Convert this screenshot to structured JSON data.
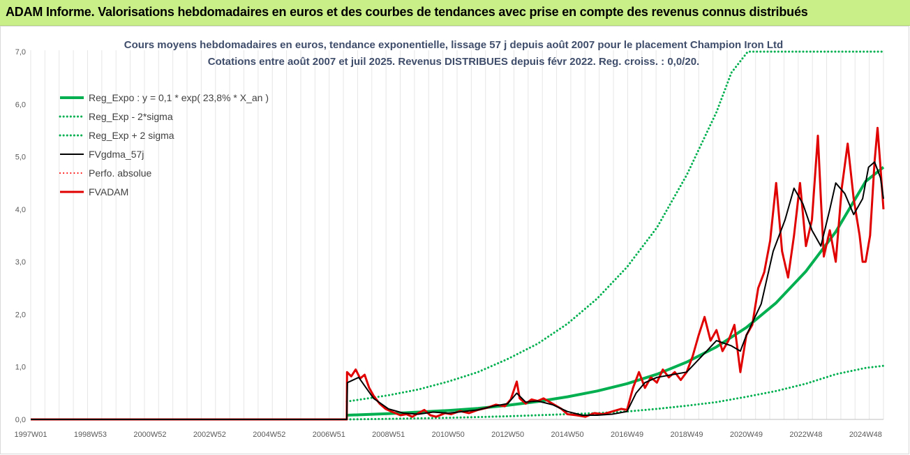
{
  "header": {
    "title": "ADAM Informe. Valorisations hebdomadaires en euros et des courbes de tendances avec prise en compte des revenus connus distribués"
  },
  "chart_data": {
    "type": "line",
    "title": "Cours moyens hebdomadaires en euros, tendance exponentielle, lissage 57 j depuis août 2007 pour le placement Champion Iron Ltd",
    "subtitle": "Cotations entre août 2007 et juil 2025. Revenus DISTRIBUES depuis févr 2022. Reg. croiss. : 0,0/20.",
    "x_range": [
      1997.0,
      2025.6
    ],
    "ylim": [
      0,
      7
    ],
    "grid": "vertical",
    "legend_position": "top-left",
    "y_ticks": [
      "0,0",
      "1,0",
      "2,0",
      "3,0",
      "4,0",
      "5,0",
      "6,0",
      "7,0"
    ],
    "x_ticks": [
      {
        "label": "1997W01",
        "x": 1997.0
      },
      {
        "label": "1998W53",
        "x": 1999.0
      },
      {
        "label": "2000W52",
        "x": 2001.0
      },
      {
        "label": "2002W52",
        "x": 2003.0
      },
      {
        "label": "2004W52",
        "x": 2005.0
      },
      {
        "label": "2006W51",
        "x": 2007.0
      },
      {
        "label": "2008W51",
        "x": 2009.0
      },
      {
        "label": "2010W50",
        "x": 2011.0
      },
      {
        "label": "2012W50",
        "x": 2013.0
      },
      {
        "label": "2014W50",
        "x": 2015.0
      },
      {
        "label": "2016W49",
        "x": 2017.0
      },
      {
        "label": "2018W49",
        "x": 2019.0
      },
      {
        "label": "2020W49",
        "x": 2021.0
      },
      {
        "label": "2022W48",
        "x": 2023.0
      },
      {
        "label": "2024W48",
        "x": 2025.0
      }
    ],
    "series": [
      {
        "name": "Reg_Expo : y = 0,1 * exp( 23,8% *  X_an )",
        "color": "#00b050",
        "style": "solid",
        "width": 4,
        "points": [
          [
            2007.6,
            0.08
          ],
          [
            2009,
            0.11
          ],
          [
            2010,
            0.14
          ],
          [
            2011,
            0.17
          ],
          [
            2012,
            0.21
          ],
          [
            2013,
            0.27
          ],
          [
            2014,
            0.34
          ],
          [
            2015,
            0.43
          ],
          [
            2016,
            0.54
          ],
          [
            2017,
            0.68
          ],
          [
            2018,
            0.86
          ],
          [
            2019,
            1.09
          ],
          [
            2020,
            1.38
          ],
          [
            2021,
            1.75
          ],
          [
            2022,
            2.22
          ],
          [
            2023,
            2.82
          ],
          [
            2024,
            3.57
          ],
          [
            2025,
            4.53
          ],
          [
            2025.6,
            4.8
          ]
        ]
      },
      {
        "name": "Reg_Exp - 2*sigma",
        "color": "#00b050",
        "style": "dotted",
        "width": 3,
        "points": [
          [
            2007.6,
            0.0
          ],
          [
            2009,
            0.01
          ],
          [
            2010,
            0.02
          ],
          [
            2011,
            0.03
          ],
          [
            2012,
            0.045
          ],
          [
            2013,
            0.06
          ],
          [
            2014,
            0.08
          ],
          [
            2015,
            0.1
          ],
          [
            2016,
            0.12
          ],
          [
            2017,
            0.15
          ],
          [
            2018,
            0.2
          ],
          [
            2019,
            0.26
          ],
          [
            2020,
            0.33
          ],
          [
            2021,
            0.43
          ],
          [
            2022,
            0.54
          ],
          [
            2023,
            0.68
          ],
          [
            2024,
            0.86
          ],
          [
            2025,
            0.98
          ],
          [
            2025.6,
            1.02
          ]
        ]
      },
      {
        "name": "Reg_Exp + 2 sigma",
        "color": "#00b050",
        "style": "dotted",
        "width": 3,
        "points": [
          [
            2007.6,
            0.34
          ],
          [
            2009,
            0.46
          ],
          [
            2010,
            0.57
          ],
          [
            2011,
            0.72
          ],
          [
            2012,
            0.9
          ],
          [
            2013,
            1.15
          ],
          [
            2014,
            1.44
          ],
          [
            2015,
            1.82
          ],
          [
            2016,
            2.3
          ],
          [
            2017,
            2.9
          ],
          [
            2018,
            3.65
          ],
          [
            2019,
            4.65
          ],
          [
            2020,
            5.85
          ],
          [
            2020.5,
            6.6
          ],
          [
            2021.05,
            7.0
          ],
          [
            2025.6,
            7.0
          ]
        ]
      },
      {
        "name": "FVgdma_57j",
        "color": "#000000",
        "style": "solid",
        "width": 2,
        "points": [
          [
            1997.0,
            0.0
          ],
          [
            2007.6,
            0.0
          ],
          [
            2007.62,
            0.7
          ],
          [
            2008,
            0.8
          ],
          [
            2008.5,
            0.4
          ],
          [
            2009,
            0.2
          ],
          [
            2009.5,
            0.12
          ],
          [
            2010,
            0.1
          ],
          [
            2010.5,
            0.14
          ],
          [
            2011,
            0.12
          ],
          [
            2011.5,
            0.15
          ],
          [
            2012,
            0.18
          ],
          [
            2012.5,
            0.25
          ],
          [
            2013,
            0.3
          ],
          [
            2013.3,
            0.5
          ],
          [
            2013.6,
            0.33
          ],
          [
            2014,
            0.35
          ],
          [
            2014.5,
            0.28
          ],
          [
            2015,
            0.15
          ],
          [
            2015.5,
            0.08
          ],
          [
            2016,
            0.08
          ],
          [
            2016.5,
            0.1
          ],
          [
            2017,
            0.15
          ],
          [
            2017.3,
            0.5
          ],
          [
            2017.6,
            0.7
          ],
          [
            2018,
            0.8
          ],
          [
            2018.5,
            0.85
          ],
          [
            2019,
            0.9
          ],
          [
            2019.5,
            1.2
          ],
          [
            2020,
            1.5
          ],
          [
            2020.5,
            1.4
          ],
          [
            2020.8,
            1.3
          ],
          [
            2021,
            1.6
          ],
          [
            2021.5,
            2.2
          ],
          [
            2021.9,
            3.2
          ],
          [
            2022.3,
            3.8
          ],
          [
            2022.6,
            4.4
          ],
          [
            2022.9,
            4.1
          ],
          [
            2023.2,
            3.6
          ],
          [
            2023.5,
            3.3
          ],
          [
            2023.8,
            4.0
          ],
          [
            2024.0,
            4.5
          ],
          [
            2024.3,
            4.3
          ],
          [
            2024.6,
            3.9
          ],
          [
            2024.9,
            4.2
          ],
          [
            2025.1,
            4.8
          ],
          [
            2025.3,
            4.9
          ],
          [
            2025.5,
            4.6
          ],
          [
            2025.6,
            4.2
          ]
        ]
      },
      {
        "name": "Perfo. absolue",
        "color": "#ff0000",
        "style": "dotted",
        "width": 2,
        "points": []
      },
      {
        "name": "FVADAM",
        "color": "#e00000",
        "style": "solid",
        "width": 3,
        "points": [
          [
            1997.0,
            0.0
          ],
          [
            2007.6,
            0.0
          ],
          [
            2007.61,
            0.9
          ],
          [
            2007.75,
            0.82
          ],
          [
            2007.9,
            0.95
          ],
          [
            2008.05,
            0.78
          ],
          [
            2008.2,
            0.85
          ],
          [
            2008.35,
            0.6
          ],
          [
            2008.5,
            0.45
          ],
          [
            2008.7,
            0.3
          ],
          [
            2008.9,
            0.2
          ],
          [
            2009.1,
            0.15
          ],
          [
            2009.4,
            0.08
          ],
          [
            2009.6,
            0.1
          ],
          [
            2009.8,
            0.05
          ],
          [
            2010.0,
            0.12
          ],
          [
            2010.2,
            0.18
          ],
          [
            2010.4,
            0.08
          ],
          [
            2010.6,
            0.05
          ],
          [
            2010.9,
            0.12
          ],
          [
            2011.1,
            0.1
          ],
          [
            2011.4,
            0.16
          ],
          [
            2011.7,
            0.12
          ],
          [
            2012.0,
            0.18
          ],
          [
            2012.3,
            0.22
          ],
          [
            2012.6,
            0.28
          ],
          [
            2012.9,
            0.25
          ],
          [
            2013.1,
            0.38
          ],
          [
            2013.3,
            0.72
          ],
          [
            2013.4,
            0.4
          ],
          [
            2013.6,
            0.3
          ],
          [
            2013.8,
            0.38
          ],
          [
            2014.0,
            0.35
          ],
          [
            2014.2,
            0.4
          ],
          [
            2014.5,
            0.3
          ],
          [
            2014.8,
            0.2
          ],
          [
            2015.0,
            0.1
          ],
          [
            2015.3,
            0.08
          ],
          [
            2015.6,
            0.05
          ],
          [
            2015.9,
            0.12
          ],
          [
            2016.2,
            0.1
          ],
          [
            2016.5,
            0.15
          ],
          [
            2016.8,
            0.2
          ],
          [
            2017.0,
            0.18
          ],
          [
            2017.2,
            0.6
          ],
          [
            2017.4,
            0.9
          ],
          [
            2017.6,
            0.6
          ],
          [
            2017.8,
            0.8
          ],
          [
            2018.0,
            0.7
          ],
          [
            2018.2,
            0.95
          ],
          [
            2018.4,
            0.8
          ],
          [
            2018.6,
            0.9
          ],
          [
            2018.8,
            0.75
          ],
          [
            2019.0,
            0.9
          ],
          [
            2019.2,
            1.2
          ],
          [
            2019.4,
            1.6
          ],
          [
            2019.6,
            1.95
          ],
          [
            2019.8,
            1.5
          ],
          [
            2020.0,
            1.7
          ],
          [
            2020.2,
            1.3
          ],
          [
            2020.4,
            1.5
          ],
          [
            2020.6,
            1.8
          ],
          [
            2020.8,
            0.9
          ],
          [
            2021.0,
            1.6
          ],
          [
            2021.2,
            1.8
          ],
          [
            2021.4,
            2.5
          ],
          [
            2021.6,
            2.8
          ],
          [
            2021.8,
            3.4
          ],
          [
            2022.0,
            4.5
          ],
          [
            2022.2,
            3.2
          ],
          [
            2022.4,
            2.7
          ],
          [
            2022.6,
            3.5
          ],
          [
            2022.8,
            4.5
          ],
          [
            2023.0,
            3.3
          ],
          [
            2023.2,
            3.8
          ],
          [
            2023.4,
            5.4
          ],
          [
            2023.5,
            4.2
          ],
          [
            2023.6,
            3.1
          ],
          [
            2023.8,
            3.6
          ],
          [
            2024.0,
            3.0
          ],
          [
            2024.2,
            4.4
          ],
          [
            2024.4,
            5.25
          ],
          [
            2024.6,
            4.2
          ],
          [
            2024.8,
            3.5
          ],
          [
            2024.9,
            3.0
          ],
          [
            2025.0,
            3.0
          ],
          [
            2025.15,
            3.5
          ],
          [
            2025.3,
            4.9
          ],
          [
            2025.4,
            5.55
          ],
          [
            2025.5,
            4.8
          ],
          [
            2025.6,
            4.0
          ]
        ]
      }
    ]
  }
}
